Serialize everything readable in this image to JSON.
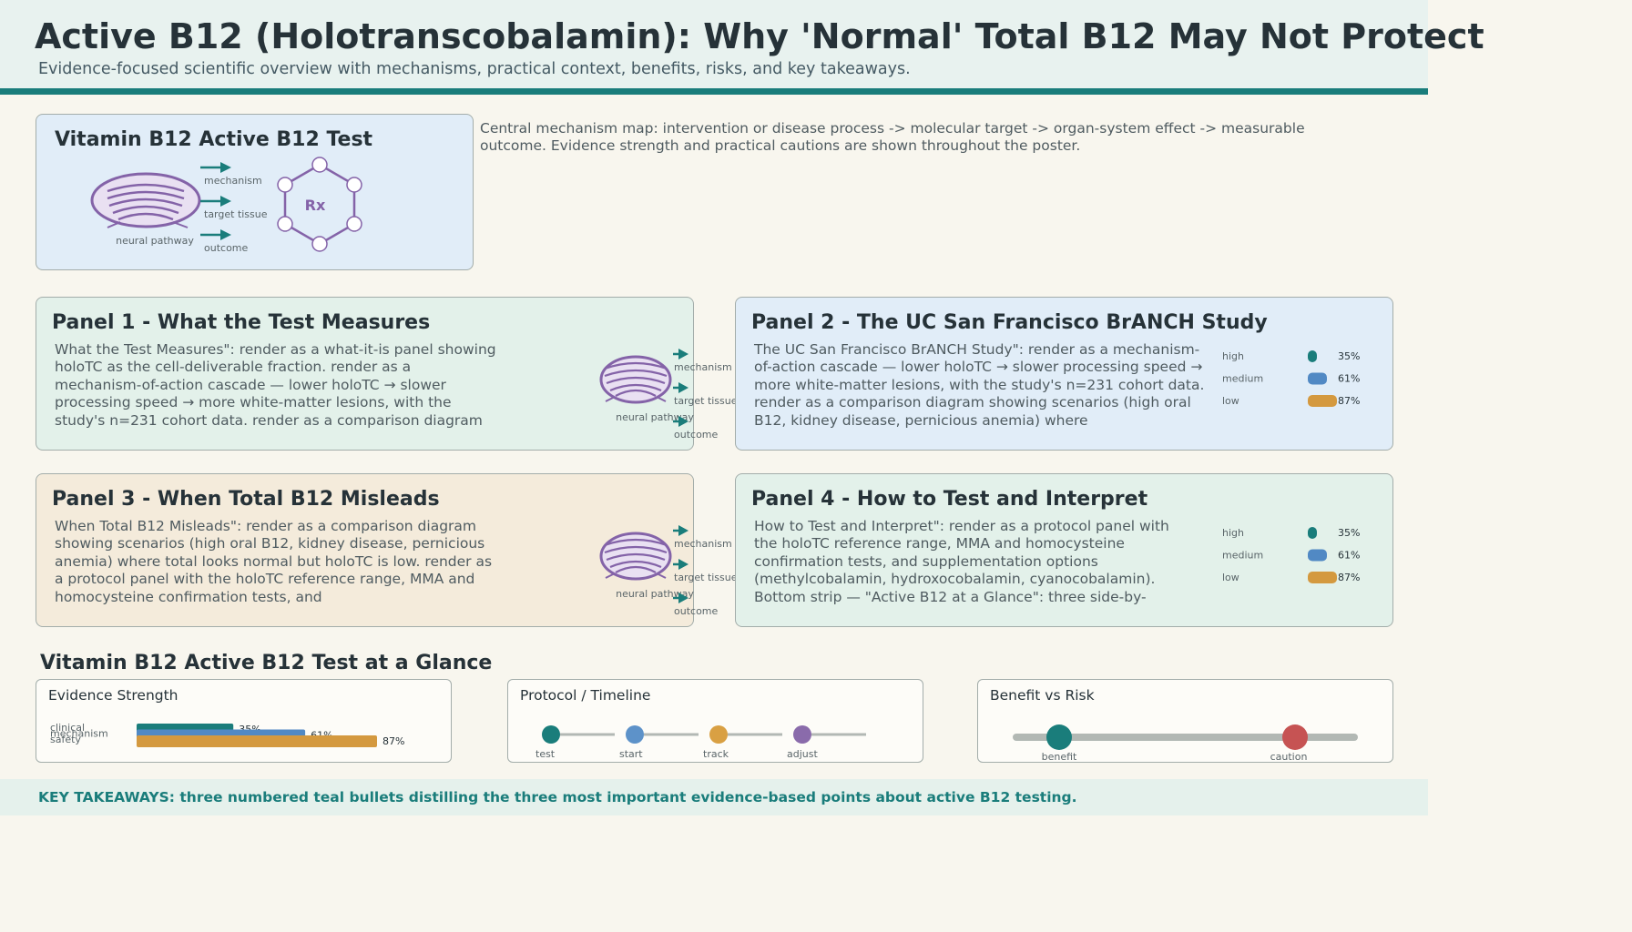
{
  "header": {
    "title": "Active B12 (Holotranscobalamin): Why 'Normal' Total B12 May Not Protect",
    "subtitle": "Evidence-focused scientific overview with mechanisms, practical context, benefits, risks, and key takeaways."
  },
  "hero": {
    "title": "Vitamin B12 Active B12 Test",
    "neural_label": "neural pathway",
    "arrow_labels": [
      "mechanism",
      "target tissue",
      "outcome"
    ],
    "rx_label": "Rx",
    "description": "Central mechanism map: intervention or disease process -> molecular target -> organ-system effect -> measurable outcome. Evidence strength and practical cautions are shown throughout the poster."
  },
  "panels": [
    {
      "title": "Panel 1 - What the Test Measures",
      "text": "What the Test Measures\": render as a what-it-is panel showing holoTC as the cell-deliverable fraction. render as a mechanism-of-action cascade — lower holoTC → slower processing speed → more white-matter lesions, with the study's n=231 cohort data. render as a comparison diagram",
      "neural_label": "neural pathway",
      "arrow_labels": [
        "mechanism",
        "target tissue",
        "outcome"
      ],
      "bg": "#e3f1ea"
    },
    {
      "title": "Panel 2 - The UC San Francisco BrANCH Study",
      "text": "The UC San Francisco BrANCH Study\": render as a mechanism-of-action cascade — lower holoTC → slower processing speed → more white-matter lesions, with the study's n=231 cohort data. render as a comparison diagram showing scenarios (high oral B12, kidney disease, pernicious anemia) where",
      "levels": [
        {
          "label": "high",
          "pct": "35%",
          "value": 35,
          "color": "#1a7d7b"
        },
        {
          "label": "medium",
          "pct": "61%",
          "value": 61,
          "color": "#5189c4"
        },
        {
          "label": "low",
          "pct": "87%",
          "value": 87,
          "color": "#d4993f"
        }
      ],
      "bg": "#e1edf8"
    },
    {
      "title": "Panel 3 - When Total B12 Misleads",
      "text": "When Total B12 Misleads\": render as a comparison diagram showing scenarios (high oral B12, kidney disease, pernicious anemia) where total looks normal but holoTC is low. render as a protocol panel with the holoTC reference range, MMA and homocysteine confirmation tests, and",
      "neural_label": "neural pathway",
      "arrow_labels": [
        "mechanism",
        "target tissue",
        "outcome"
      ],
      "bg": "#f4ebdb"
    },
    {
      "title": "Panel 4 - How to Test and Interpret",
      "text": "How to Test and Interpret\": render as a protocol panel with the holoTC reference range, MMA and homocysteine confirmation tests, and supplementation options (methylcobalamin, hydroxocobalamin, cyanocobalamin). Bottom strip — \"Active B12 at a Glance\": three side-by-",
      "levels": [
        {
          "label": "high",
          "pct": "35%",
          "value": 35,
          "color": "#1a7d7b"
        },
        {
          "label": "medium",
          "pct": "61%",
          "value": 61,
          "color": "#5189c4"
        },
        {
          "label": "low",
          "pct": "87%",
          "value": 87,
          "color": "#d4993f"
        }
      ],
      "bg": "#e3f1ea"
    }
  ],
  "glance": {
    "title": "Vitamin B12 Active B12 Test at a Glance",
    "evidence": {
      "title": "Evidence Strength",
      "bars": [
        {
          "label": "clinical",
          "pct": "35%",
          "value": 35,
          "color": "#1a7d7b"
        },
        {
          "label": "mechanism",
          "pct": "61%",
          "value": 61,
          "color": "#5189c4"
        },
        {
          "label": "safety",
          "pct": "87%",
          "value": 87,
          "color": "#d4993f"
        }
      ]
    },
    "timeline": {
      "title": "Protocol / Timeline",
      "steps": [
        {
          "label": "test",
          "color": "#1a7d7b"
        },
        {
          "label": "start",
          "color": "#5d92c9"
        },
        {
          "label": "track",
          "color": "#d9a043"
        },
        {
          "label": "adjust",
          "color": "#8a6bab"
        }
      ]
    },
    "benefit_risk": {
      "title": "Benefit vs Risk",
      "benefit_label": "benefit",
      "caution_label": "caution",
      "benefit_color": "#1a7d7b",
      "caution_color": "#c65353"
    }
  },
  "footer": {
    "takeaways": "KEY TAKEAWAYS: three numbered teal bullets distilling the three most important evidence-based points about active B12 testing."
  }
}
